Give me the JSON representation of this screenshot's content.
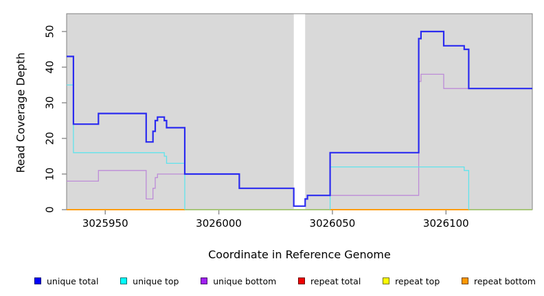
{
  "chart_data": {
    "type": "line",
    "subtype": "step-coverage",
    "title": "",
    "xlabel": "Coordinate in Reference Genome",
    "ylabel": "Read Coverage Depth",
    "xlim": [
      3025933,
      3026138
    ],
    "ylim": [
      0,
      55
    ],
    "x_ticks": [
      3025950,
      3026000,
      3026050,
      3026100
    ],
    "y_ticks": [
      0,
      10,
      20,
      30,
      40,
      50
    ],
    "grid": false,
    "legend_position": "bottom",
    "colors": {
      "panel_bg": "#d9d9d9",
      "panel_border": "#808080",
      "tick": "#8a8a8a",
      "masked_band": "#ffffff",
      "baseline_green_blend": "#8ccf8c"
    },
    "masked_region": {
      "from": 3026033,
      "to": 3026038
    },
    "series": [
      {
        "name": "unique total",
        "legend_color": "#0000ff",
        "line_color": "#2b2bf0",
        "line_width": 2.2,
        "skip_zero_runs": false,
        "steps": [
          [
            3025933,
            43
          ],
          [
            3025936,
            24
          ],
          [
            3025947,
            27
          ],
          [
            3025968,
            19
          ],
          [
            3025971,
            22
          ],
          [
            3025972,
            25
          ],
          [
            3025973,
            26
          ],
          [
            3025976,
            25
          ],
          [
            3025977,
            23
          ],
          [
            3025985,
            10
          ],
          [
            3026009,
            6
          ],
          [
            3026033,
            1
          ],
          [
            3026038,
            3
          ],
          [
            3026039,
            4
          ],
          [
            3026049,
            16
          ],
          [
            3026088,
            48
          ],
          [
            3026089,
            50
          ],
          [
            3026099,
            46
          ],
          [
            3026108,
            45
          ],
          [
            3026110,
            34
          ]
        ]
      },
      {
        "name": "unique top",
        "legend_color": "#00ffff",
        "line_color": "#5fe3ec",
        "line_width": 1.3,
        "skip_zero_runs": true,
        "steps": [
          [
            3025933,
            35
          ],
          [
            3025936,
            16
          ],
          [
            3025976,
            15
          ],
          [
            3025977,
            13
          ],
          [
            3025985,
            0
          ],
          [
            3026049,
            12
          ],
          [
            3026108,
            11
          ],
          [
            3026110,
            0
          ]
        ]
      },
      {
        "name": "unique bottom",
        "legend_color": "#a020f0",
        "line_color": "#bd8bd8",
        "line_width": 1.3,
        "skip_zero_runs": false,
        "steps": [
          [
            3025933,
            8
          ],
          [
            3025947,
            11
          ],
          [
            3025968,
            3
          ],
          [
            3025971,
            6
          ],
          [
            3025972,
            9
          ],
          [
            3025973,
            10
          ],
          [
            3026009,
            6
          ],
          [
            3026033,
            1
          ],
          [
            3026038,
            3
          ],
          [
            3026039,
            4
          ],
          [
            3026088,
            36
          ],
          [
            3026089,
            38
          ],
          [
            3026099,
            34
          ]
        ]
      },
      {
        "name": "repeat total",
        "legend_color": "#ee0000",
        "line_color": "#ee0000",
        "line_width": 1.3,
        "skip_zero_runs": false,
        "steps": [
          [
            3025933,
            0
          ]
        ]
      },
      {
        "name": "repeat top",
        "legend_color": "#ffff00",
        "line_color": "#ffff00",
        "line_width": 1.3,
        "skip_zero_runs": false,
        "steps": [
          [
            3025933,
            0
          ]
        ]
      },
      {
        "name": "repeat bottom",
        "legend_color": "#ff9800",
        "line_color": "#ff9800",
        "line_width": 1.6,
        "skip_zero_runs": false,
        "steps": [
          [
            3025933,
            0
          ]
        ]
      }
    ],
    "baseline_segments": [
      {
        "from": 3025933,
        "to": 3025985,
        "color": "#ff9800"
      },
      {
        "from": 3025985,
        "to": 3026049,
        "color": "#8ccf8c"
      },
      {
        "from": 3026049,
        "to": 3026110,
        "color": "#ff9800"
      },
      {
        "from": 3026110,
        "to": 3026138,
        "color": "#8ccf8c"
      }
    ]
  }
}
